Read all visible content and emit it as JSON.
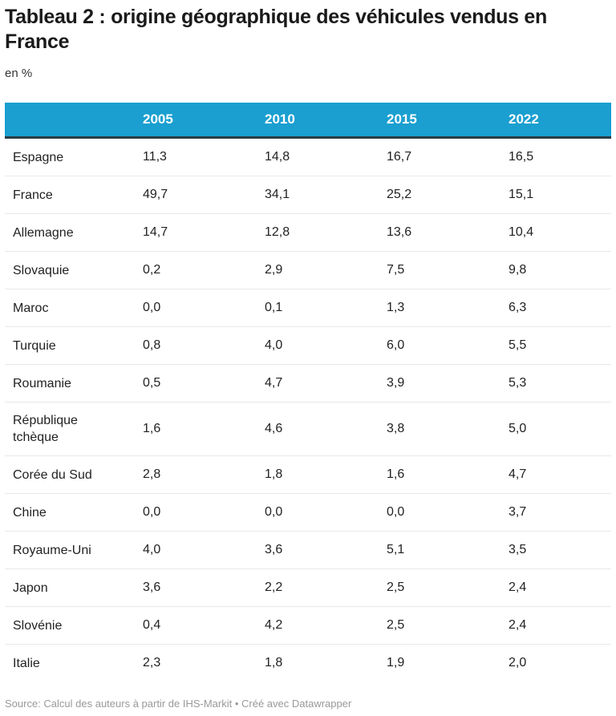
{
  "title": "Tableau 2 : origine géographique des véhicules vendus en France",
  "subtitle": "en %",
  "source": "Source: Calcul des auteurs à partir de IHS-Markit • Créé avec Datawrapper",
  "colors": {
    "header_bg": "#1a9fd0",
    "header_border": "#2b3a44"
  },
  "chart_data": {
    "type": "table",
    "columns": [
      "",
      "2005",
      "2010",
      "2015",
      "2022"
    ],
    "rows": [
      [
        "Espagne",
        "11,3",
        "14,8",
        "16,7",
        "16,5"
      ],
      [
        "France",
        "49,7",
        "34,1",
        "25,2",
        "15,1"
      ],
      [
        "Allemagne",
        "14,7",
        "12,8",
        "13,6",
        "10,4"
      ],
      [
        "Slovaquie",
        "0,2",
        "2,9",
        "7,5",
        "9,8"
      ],
      [
        "Maroc",
        "0,0",
        "0,1",
        "1,3",
        "6,3"
      ],
      [
        "Turquie",
        "0,8",
        "4,0",
        "6,0",
        "5,5"
      ],
      [
        "Roumanie",
        "0,5",
        "4,7",
        "3,9",
        "5,3"
      ],
      [
        "République tchèque",
        "1,6",
        "4,6",
        "3,8",
        "5,0"
      ],
      [
        "Corée du Sud",
        "2,8",
        "1,8",
        "1,6",
        "4,7"
      ],
      [
        "Chine",
        "0,0",
        "0,0",
        "0,0",
        "3,7"
      ],
      [
        "Royaume-Uni",
        "4,0",
        "3,6",
        "5,1",
        "3,5"
      ],
      [
        "Japon",
        "3,6",
        "2,2",
        "2,5",
        "2,4"
      ],
      [
        "Slovénie",
        "0,4",
        "4,2",
        "2,5",
        "2,4"
      ],
      [
        "Italie",
        "2,3",
        "1,8",
        "1,9",
        "2,0"
      ]
    ]
  }
}
